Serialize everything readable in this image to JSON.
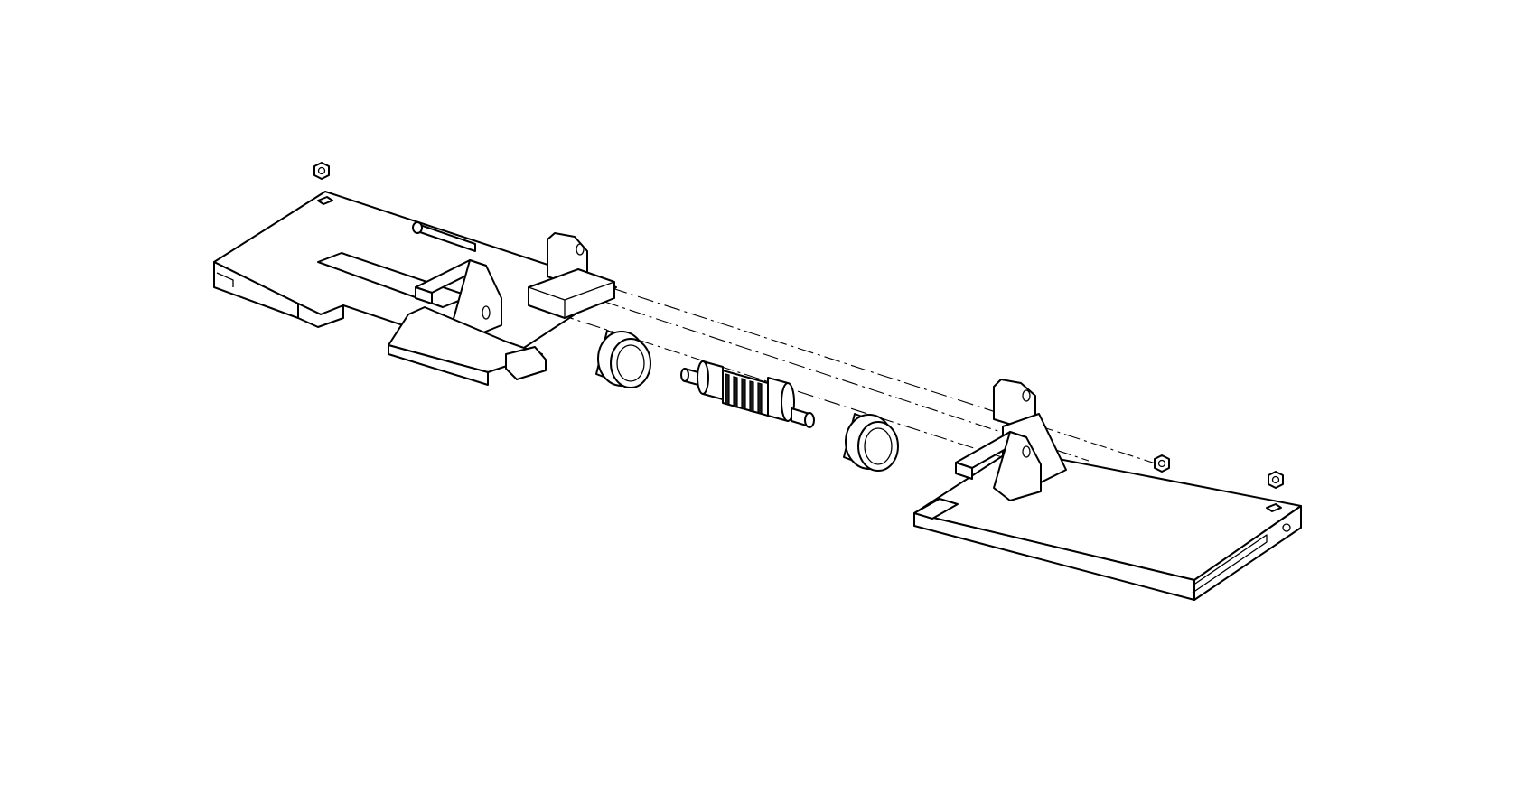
{
  "diagram": {
    "type": "exploded-assembly-line-drawing",
    "background": "#ffffff",
    "line_color": "#000000",
    "labels": []
  }
}
